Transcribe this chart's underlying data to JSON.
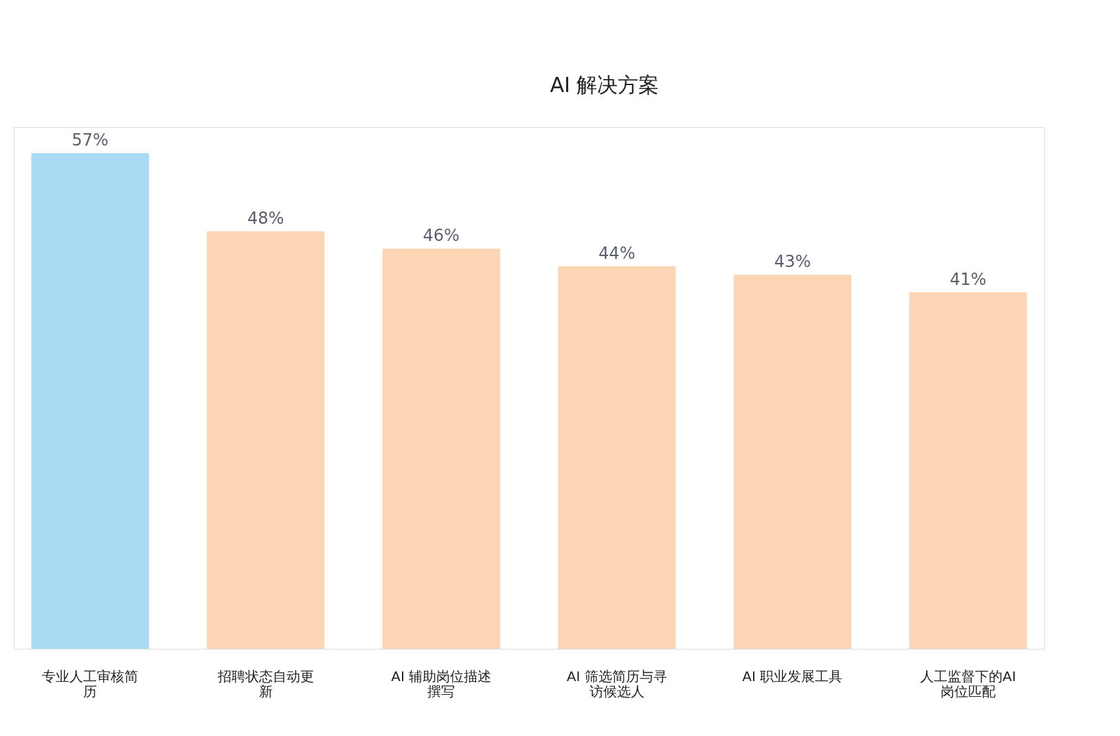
{
  "chart_data": {
    "type": "bar",
    "categories": [
      "专业人工审核简历",
      "招聘状态自动更新",
      "AI 辅助岗位描述撰写",
      "AI 筛选简历与寻访候选人",
      "AI 职业发展工具",
      "人工监督下的AI 岗位匹配"
    ],
    "values": [
      57,
      48,
      46,
      44,
      43,
      41
    ],
    "colors": [
      "#a8daf4",
      "#fcd5b5",
      "#fcd5b5",
      "#fcd5b5",
      "#fcd5b5",
      "#fcd5b5"
    ],
    "value_labels": [
      "57%",
      "48%",
      "46%",
      "44%",
      "43%",
      "41%"
    ],
    "annotations": [
      "AI 解决方案"
    ],
    "grid": false,
    "tick_labels": "x"
  }
}
